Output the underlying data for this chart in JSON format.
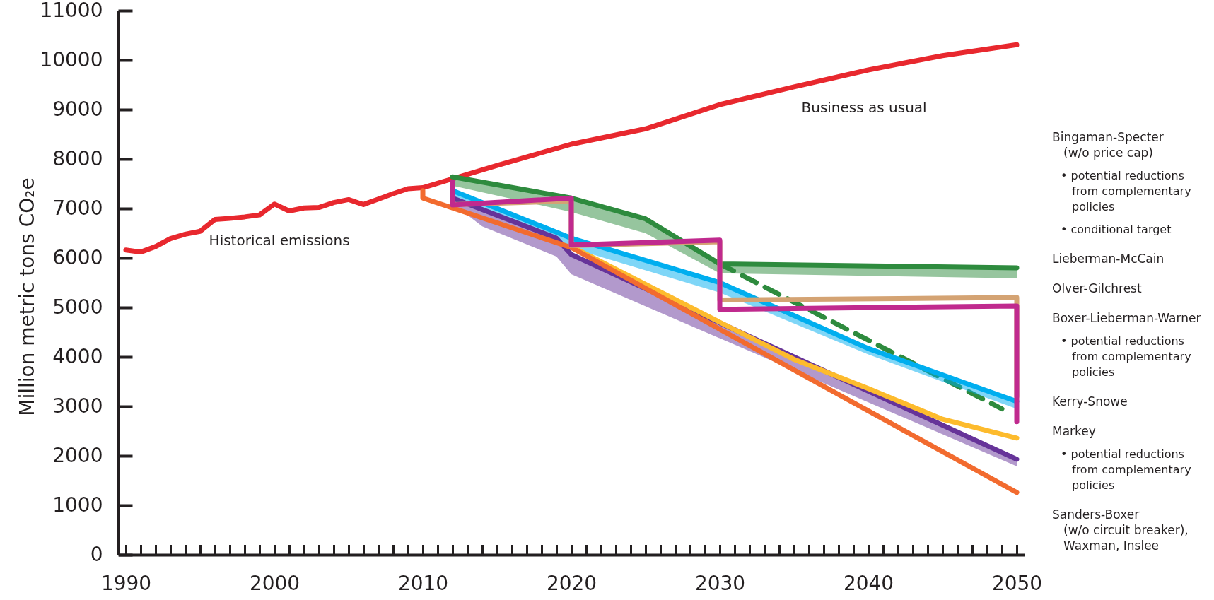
{
  "chart_data": {
    "type": "line",
    "ylabel": "Million metric tons CO₂e",
    "xlim": [
      1989.5,
      2050.5
    ],
    "ylim": [
      0,
      11000
    ],
    "xticks": [
      1990,
      {
        "value": 1991,
        "label": null
      },
      {
        "value": 1992,
        "label": null
      },
      {
        "value": 1993,
        "label": null
      },
      {
        "value": 1994,
        "label": null
      },
      {
        "value": 1995,
        "label": null
      },
      {
        "value": 1996,
        "label": null
      },
      {
        "value": 1997,
        "label": null
      },
      {
        "value": 1998,
        "label": null
      },
      {
        "value": 1999,
        "label": null
      },
      2000,
      {
        "value": 2001,
        "label": null
      },
      {
        "value": 2002,
        "label": null
      },
      {
        "value": 2003,
        "label": null
      },
      {
        "value": 2004,
        "label": null
      },
      {
        "value": 2005,
        "label": null
      },
      {
        "value": 2006,
        "label": null
      },
      {
        "value": 2007,
        "label": null
      },
      {
        "value": 2008,
        "label": null
      },
      {
        "value": 2009,
        "label": null
      },
      2010,
      {
        "value": 2011,
        "label": null
      },
      {
        "value": 2012,
        "label": null
      },
      {
        "value": 2013,
        "label": null
      },
      {
        "value": 2014,
        "label": null
      },
      {
        "value": 2015,
        "label": null
      },
      {
        "value": 2016,
        "label": null
      },
      {
        "value": 2017,
        "label": null
      },
      {
        "value": 2018,
        "label": null
      },
      {
        "value": 2019,
        "label": null
      },
      2020,
      {
        "value": 2021,
        "label": null
      },
      {
        "value": 2022,
        "label": null
      },
      {
        "value": 2023,
        "label": null
      },
      {
        "value": 2024,
        "label": null
      },
      {
        "value": 2025,
        "label": null
      },
      {
        "value": 2026,
        "label": null
      },
      {
        "value": 2027,
        "label": null
      },
      {
        "value": 2028,
        "label": null
      },
      {
        "value": 2029,
        "label": null
      },
      2030,
      {
        "value": 2031,
        "label": null
      },
      {
        "value": 2032,
        "label": null
      },
      {
        "value": 2033,
        "label": null
      },
      {
        "value": 2034,
        "label": null
      },
      {
        "value": 2035,
        "label": null
      },
      {
        "value": 2036,
        "label": null
      },
      {
        "value": 2037,
        "label": null
      },
      {
        "value": 2038,
        "label": null
      },
      {
        "value": 2039,
        "label": null
      },
      2040,
      {
        "value": 2041,
        "label": null
      },
      {
        "value": 2042,
        "label": null
      },
      {
        "value": 2043,
        "label": null
      },
      {
        "value": 2044,
        "label": null
      },
      {
        "value": 2045,
        "label": null
      },
      {
        "value": 2046,
        "label": null
      },
      {
        "value": 2047,
        "label": null
      },
      {
        "value": 2048,
        "label": null
      },
      {
        "value": 2049,
        "label": null
      },
      2050
    ],
    "yticks": [
      0,
      1000,
      2000,
      3000,
      4000,
      5000,
      6000,
      7000,
      8000,
      9000,
      10000,
      11000
    ],
    "grid": false,
    "marker": "none",
    "series": [
      {
        "color": "#e8282e",
        "x": [
          1990,
          1991,
          1992,
          1993,
          1994,
          1995,
          1996,
          1997,
          1998,
          1999,
          2000,
          2001,
          2002,
          2003,
          2004,
          2005,
          2006,
          2007,
          2008,
          2009,
          2010,
          2012,
          2015,
          2020,
          2025,
          2030,
          2035,
          2040,
          2045,
          2050
        ],
        "values": [
          6160,
          6120,
          6230,
          6390,
          6480,
          6540,
          6780,
          6800,
          6830,
          6870,
          7090,
          6950,
          7010,
          7020,
          7120,
          7180,
          7080,
          7190,
          7300,
          7400,
          7420,
          7600,
          7870,
          8300,
          8610,
          9100,
          9460,
          9800,
          10090,
          10310
        ]
      },
      {
        "color": "#2e8b3e",
        "x": [
          2012,
          2020,
          2025,
          2030,
          2050
        ],
        "values": [
          7640,
          7210,
          6790,
          5880,
          5800
        ],
        "lower": [
          7460,
          6930,
          6500,
          5690,
          5590
        ],
        "upper": [
          7640,
          7210,
          6790,
          5880,
          5800
        ]
      },
      {
        "color": "#2e8b3e",
        "line_style": "dashed",
        "x": [
          2030,
          2049
        ],
        "values": [
          5880,
          2950
        ]
      },
      {
        "color": "#00aeef",
        "x": [
          2012,
          2020,
          2030,
          2040,
          2050
        ],
        "values": [
          7360,
          6400,
          5500,
          4170,
          3100
        ],
        "lower": [
          7250,
          6200,
          5300,
          4050,
          2950
        ],
        "upper": [
          7360,
          6400,
          5500,
          4170,
          3100
        ]
      },
      {
        "color": "#663399",
        "x": [
          2012,
          2014,
          2019,
          2020,
          2050
        ],
        "values": [
          7210,
          6980,
          6400,
          6070,
          1930
        ],
        "lower": [
          7100,
          6640,
          6030,
          5670,
          1790
        ],
        "upper": [
          7210,
          6980,
          6400,
          6070,
          1930
        ]
      },
      {
        "color": "#fdbb2d",
        "x": [
          2020,
          2030,
          2035,
          2040,
          2045,
          2050
        ],
        "values": [
          6230,
          4700,
          3950,
          3360,
          2740,
          2360
        ]
      },
      {
        "color": "#f26b2f",
        "x": [
          2010,
          2010,
          2020,
          2050
        ],
        "values": [
          7360,
          7210,
          6210,
          1260
        ]
      },
      {
        "color": "#d4a373",
        "x": [
          2012,
          2012,
          2020,
          2020,
          2030,
          2030,
          2050,
          2050
        ],
        "values": [
          7500,
          7080,
          7150,
          6250,
          6330,
          5150,
          5200,
          3200
        ]
      },
      {
        "color": "#c02a8e",
        "x": [
          2012,
          2012,
          2020,
          2020,
          2030,
          2030,
          2050,
          2050
        ],
        "values": [
          7540,
          7070,
          7210,
          6260,
          6360,
          4960,
          5030,
          2690
        ]
      }
    ],
    "annotations": [
      "Historical emissions",
      "Business as usual",
      "Bingaman-Specter\n(w/o price cap)",
      "• potential reductions\nfrom complementary\npolicies",
      "• conditional target",
      "Lieberman-McCain",
      "Olver-Gilchrest",
      "Boxer-Lieberman-Warner",
      "• potential reductions\nfrom complementary\npolicies",
      "Kerry-Snowe",
      "Markey",
      "• potential reductions\nfrom complementary\npolicies",
      "Sanders-Boxer\n(w/o circuit breaker),\nWaxman, Inslee"
    ]
  }
}
